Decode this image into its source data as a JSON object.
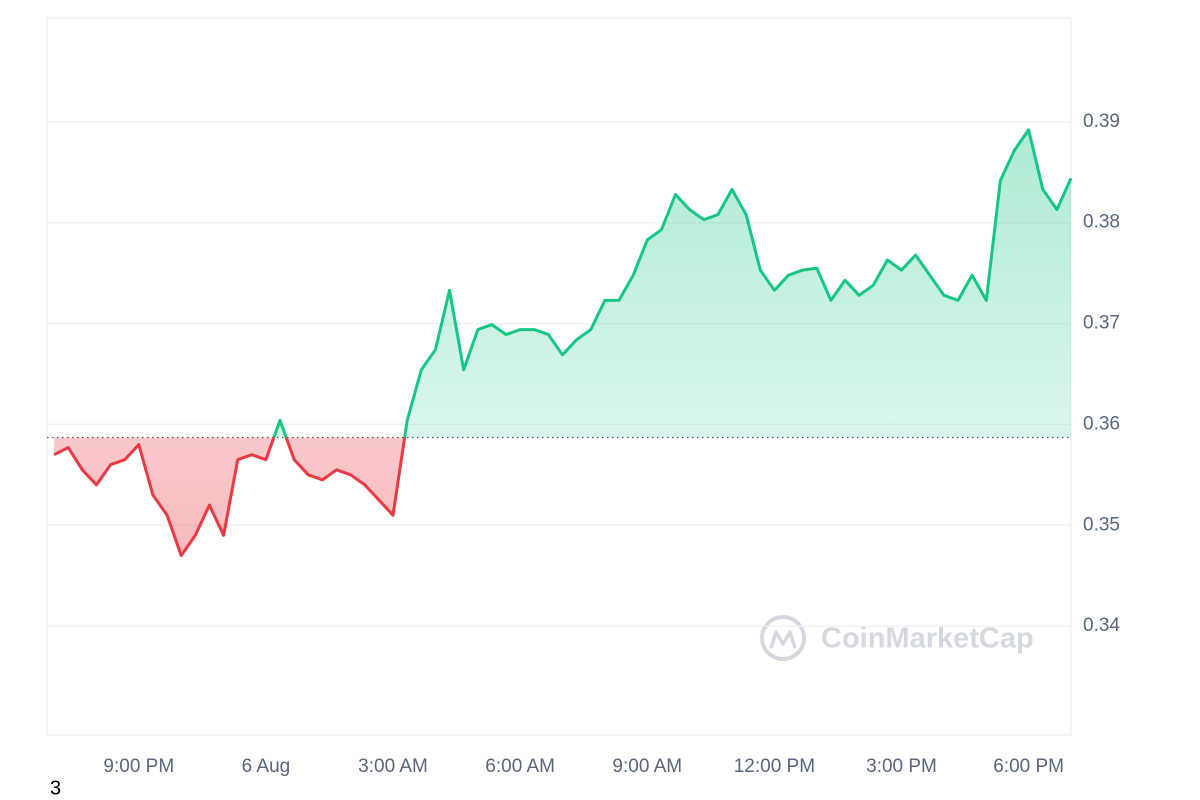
{
  "chart_data": {
    "type": "line",
    "watermark": "CoinMarketCap",
    "footnote": "3",
    "x": [
      "5 Aug 19:00",
      "5 Aug 19:20",
      "5 Aug 19:40",
      "5 Aug 20:00",
      "5 Aug 20:20",
      "5 Aug 20:40",
      "5 Aug 21:00",
      "5 Aug 21:20",
      "5 Aug 21:40",
      "5 Aug 22:00",
      "5 Aug 22:20",
      "5 Aug 22:40",
      "5 Aug 23:00",
      "5 Aug 23:20",
      "5 Aug 23:40",
      "6 Aug 00:00",
      "6 Aug 00:20",
      "6 Aug 00:40",
      "6 Aug 01:00",
      "6 Aug 01:20",
      "6 Aug 01:40",
      "6 Aug 02:00",
      "6 Aug 02:20",
      "6 Aug 02:40",
      "6 Aug 03:00",
      "6 Aug 03:20",
      "6 Aug 03:40",
      "6 Aug 04:00",
      "6 Aug 04:20",
      "6 Aug 04:40",
      "6 Aug 05:00",
      "6 Aug 05:20",
      "6 Aug 05:40",
      "6 Aug 06:00",
      "6 Aug 06:20",
      "6 Aug 06:40",
      "6 Aug 07:00",
      "6 Aug 07:20",
      "6 Aug 07:40",
      "6 Aug 08:00",
      "6 Aug 08:20",
      "6 Aug 08:40",
      "6 Aug 09:00",
      "6 Aug 09:20",
      "6 Aug 09:40",
      "6 Aug 10:00",
      "6 Aug 10:20",
      "6 Aug 10:40",
      "6 Aug 11:00",
      "6 Aug 11:20",
      "6 Aug 11:40",
      "6 Aug 12:00",
      "6 Aug 12:20",
      "6 Aug 12:40",
      "6 Aug 13:00",
      "6 Aug 13:20",
      "6 Aug 13:40",
      "6 Aug 14:00",
      "6 Aug 14:20",
      "6 Aug 14:40",
      "6 Aug 15:00",
      "6 Aug 15:20",
      "6 Aug 15:40",
      "6 Aug 16:00",
      "6 Aug 16:20",
      "6 Aug 16:40",
      "6 Aug 17:00",
      "6 Aug 17:20",
      "6 Aug 17:40",
      "6 Aug 18:00",
      "6 Aug 18:20",
      "6 Aug 18:40",
      "6 Aug 19:00"
    ],
    "values": [
      0.357,
      0.3577,
      0.3555,
      0.354,
      0.356,
      0.3565,
      0.358,
      0.353,
      0.351,
      0.347,
      0.349,
      0.352,
      0.349,
      0.3565,
      0.357,
      0.3565,
      0.3604,
      0.3565,
      0.355,
      0.3545,
      0.3555,
      0.355,
      0.354,
      0.3525,
      0.351,
      0.3604,
      0.3654,
      0.3674,
      0.3733,
      0.3654,
      0.3694,
      0.3699,
      0.3689,
      0.3694,
      0.3694,
      0.3689,
      0.3669,
      0.3684,
      0.3694,
      0.3723,
      0.3723,
      0.3748,
      0.3783,
      0.3793,
      0.3828,
      0.3813,
      0.3803,
      0.3808,
      0.3833,
      0.3808,
      0.3753,
      0.3733,
      0.3748,
      0.3753,
      0.3755,
      0.3723,
      0.3743,
      0.3728,
      0.3738,
      0.3763,
      0.3753,
      0.3768,
      0.3748,
      0.3728,
      0.3723,
      0.3748,
      0.3723,
      0.3842,
      0.3872,
      0.3892,
      0.3833,
      0.3813,
      0.3844
    ],
    "reference": 0.3587,
    "up_color": "#16c784",
    "down_color": "#ea3943",
    "xlim": [
      "5 Aug 18:50",
      "6 Aug 19:00"
    ],
    "xticks": [
      {
        "value": "5 Aug 21:00",
        "label": "9:00 PM"
      },
      {
        "value": "6 Aug 00:00",
        "label": "6 Aug"
      },
      {
        "value": "6 Aug 03:00",
        "label": "3:00 AM"
      },
      {
        "value": "6 Aug 06:00",
        "label": "6:00 AM"
      },
      {
        "value": "6 Aug 09:00",
        "label": "9:00 AM"
      },
      {
        "value": "6 Aug 12:00",
        "label": "12:00 PM"
      },
      {
        "value": "6 Aug 15:00",
        "label": "3:00 PM"
      },
      {
        "value": "6 Aug 18:00",
        "label": "6:00 PM"
      }
    ],
    "ylim": [
      0.3292,
      0.4003
    ],
    "yticks": [
      0.34,
      0.35,
      0.36,
      0.37,
      0.38,
      0.39
    ],
    "grid": true
  }
}
